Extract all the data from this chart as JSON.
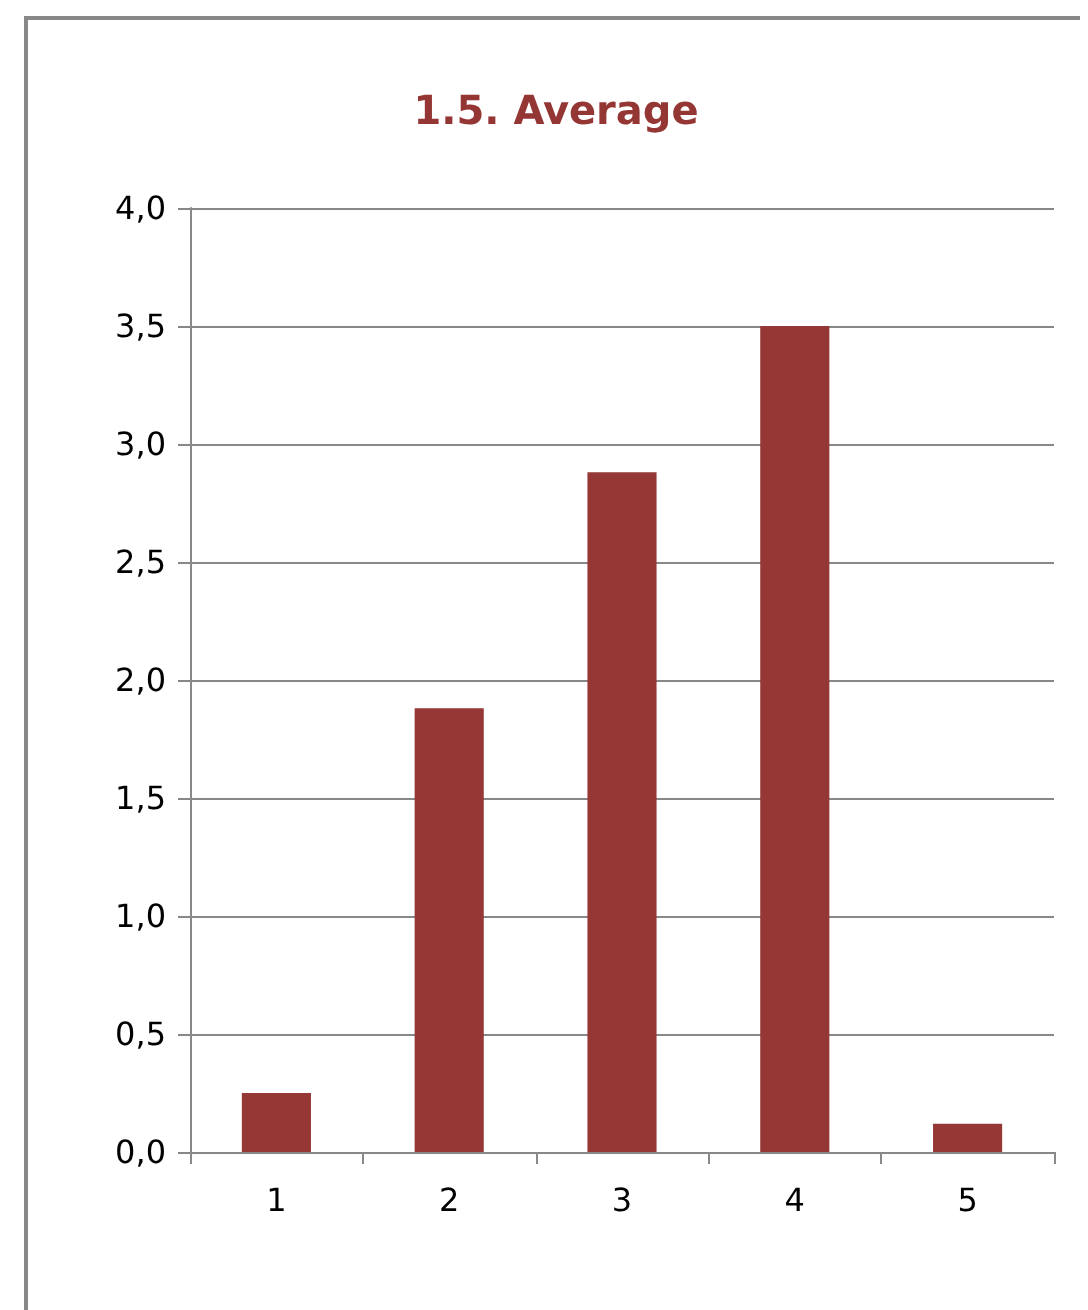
{
  "chart_data": {
    "type": "bar",
    "title": "1.5. Average",
    "categories": [
      "1",
      "2",
      "3",
      "4",
      "5"
    ],
    "values": [
      0.25,
      1.88,
      2.88,
      3.5,
      0.12
    ],
    "color": "#953735",
    "ylim": [
      0,
      4
    ],
    "yticks": [
      {
        "value": 0,
        "label": "0,0"
      },
      {
        "value": 0.5,
        "label": "0,5"
      },
      {
        "value": 1,
        "label": "1,0"
      },
      {
        "value": 1.5,
        "label": "1,5"
      },
      {
        "value": 2,
        "label": "2,0"
      },
      {
        "value": 2.5,
        "label": "2,5"
      },
      {
        "value": 3,
        "label": "3,0"
      },
      {
        "value": 3.5,
        "label": "3,5"
      },
      {
        "value": 4,
        "label": "4,0"
      }
    ],
    "grid": "y"
  }
}
